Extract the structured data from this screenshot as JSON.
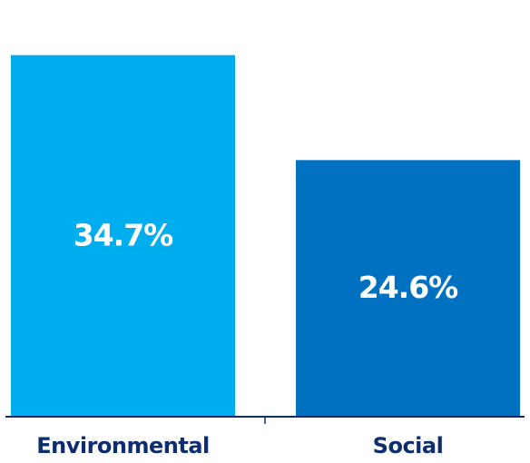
{
  "chart_data": {
    "type": "bar",
    "categories": [
      "Environmental",
      "Social"
    ],
    "values": [
      34.7,
      24.6
    ],
    "value_labels": [
      "34.7%",
      "24.6%"
    ],
    "ylim": [
      0,
      40
    ],
    "grid": false,
    "legend": "none",
    "colors": [
      "#00aeef",
      "#0070c0"
    ],
    "axis_color": "#0d2d6e",
    "label_color": "#ffffff",
    "category_label_color": "#0d2d6e"
  }
}
